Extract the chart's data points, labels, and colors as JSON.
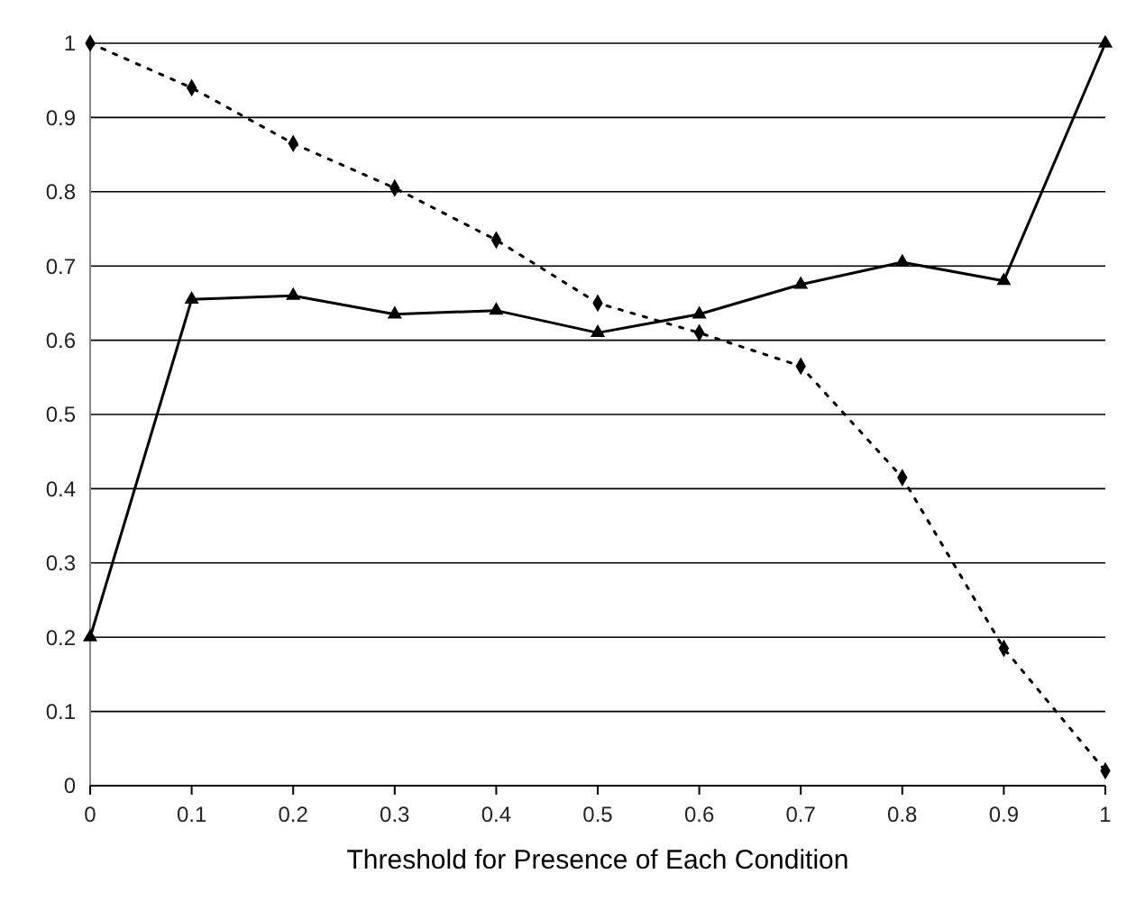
{
  "chart_data": {
    "type": "line",
    "xlabel": "Threshold for Presence of Each Condition",
    "categories": [
      "0",
      "0.1",
      "0.2",
      "0.3",
      "0.4",
      "0.5",
      "0.6",
      "0.7",
      "0.8",
      "0.9",
      "1"
    ],
    "series": [
      {
        "color": "#000000",
        "marker": "triangle",
        "line_style": "solid",
        "values": [
          0.2,
          0.655,
          0.66,
          0.635,
          0.64,
          0.61,
          0.635,
          0.675,
          0.705,
          0.68,
          1.0
        ]
      },
      {
        "color": "#000000",
        "marker": "diamond",
        "line_style": "dotted",
        "values": [
          1.0,
          0.94,
          0.865,
          0.805,
          0.735,
          0.65,
          0.61,
          0.565,
          0.415,
          0.185,
          0.02
        ]
      }
    ],
    "ylim": [
      0,
      1
    ],
    "yticks": [
      0,
      0.1,
      0.2,
      0.3,
      0.4,
      0.5,
      0.6,
      0.7,
      0.8,
      0.9,
      1
    ],
    "grid": "y"
  }
}
